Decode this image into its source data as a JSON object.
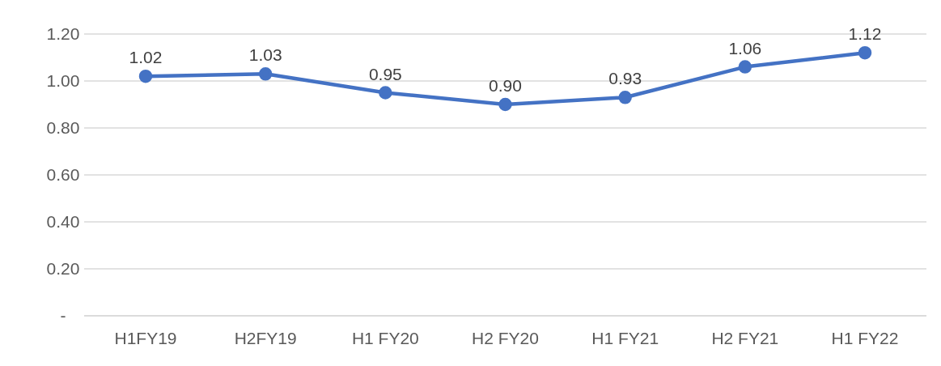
{
  "chart_data": {
    "type": "line",
    "categories": [
      "H1FY19",
      "H2FY19",
      "H1 FY20",
      "H2 FY20",
      "H1 FY21",
      "H2 FY21",
      "H1 FY22"
    ],
    "series": [
      {
        "color": "#4472c4",
        "values": [
          1.02,
          1.03,
          0.95,
          0.9,
          0.93,
          1.06,
          1.12
        ],
        "value_labels": [
          "1.02",
          "1.03",
          "0.95",
          "0.90",
          "0.93",
          "1.06",
          "1.12"
        ]
      }
    ],
    "ylim": [
      0,
      1.2
    ],
    "yticks": [
      {
        "value": 0,
        "label": "-"
      },
      {
        "value": 0.2,
        "label": "0.20"
      },
      {
        "value": 0.4,
        "label": "0.40"
      },
      {
        "value": 0.6,
        "label": "0.60"
      },
      {
        "value": 0.8,
        "label": "0.80"
      },
      {
        "value": 1,
        "label": "1.00"
      },
      {
        "value": 1.2,
        "label": "1.20"
      }
    ],
    "grid": "y",
    "marker": "circle",
    "line_style": "solid",
    "legend": false
  }
}
